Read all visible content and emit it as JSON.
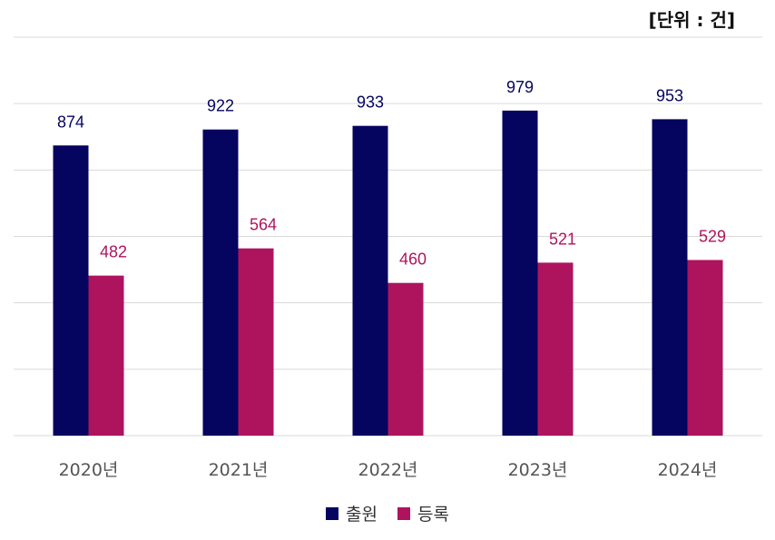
{
  "unit_label": "[단위 : 건]",
  "colors": {
    "series1": "#05045f",
    "series2": "#ae145e",
    "grid": "#d9d9d9",
    "tick_text": "#555555"
  },
  "chart_data": {
    "type": "bar",
    "categories": [
      "2020년",
      "2021년",
      "2022년",
      "2023년",
      "2024년"
    ],
    "series": [
      {
        "name": "출원",
        "values": [
          874,
          922,
          933,
          979,
          953
        ]
      },
      {
        "name": "등록",
        "values": [
          482,
          564,
          460,
          521,
          529
        ]
      }
    ],
    "ylim": [
      0,
      1200
    ],
    "grid": true,
    "legend": "bottom-center",
    "data_labels": true
  }
}
